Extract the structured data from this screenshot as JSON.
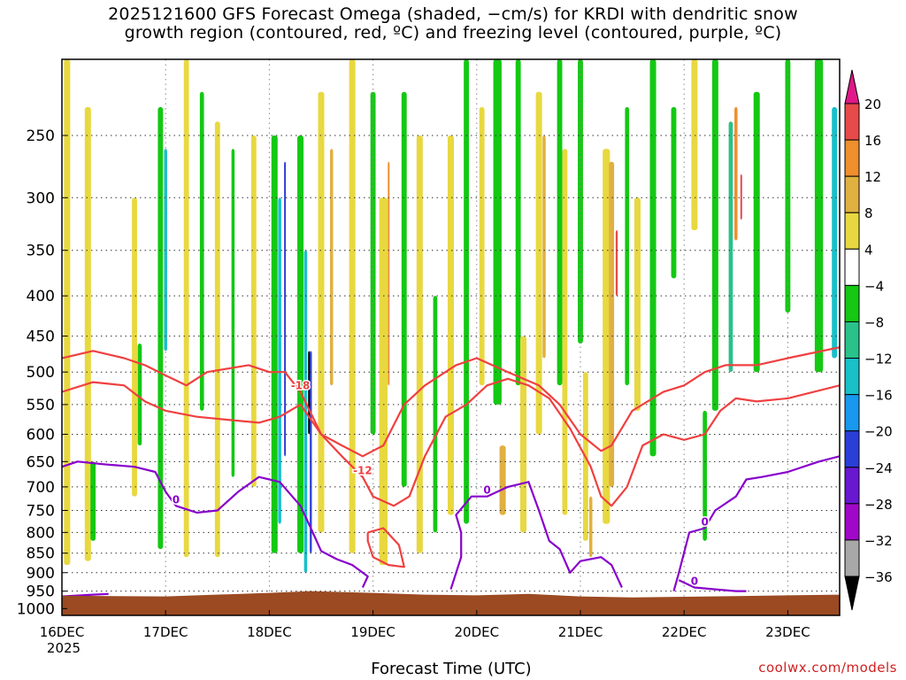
{
  "title_line1": "2025121600 GFS Forecast Omega (shaded, −cm/s) for KRDI with dendritic snow",
  "title_line2": "growth region (contoured, red, ºC) and freezing level (contoured, purple, ºC)",
  "credit": "coolwx.com/models",
  "colors": {
    "terrain": "#9b4a22",
    "dgz_contour": "#f04040",
    "freezing_contour": "#8800cc",
    "grid": "#333333"
  },
  "chart_data": {
    "type": "heatmap",
    "xlabel": "Forecast Time (UTC)",
    "ylabel": "",
    "x_ticks": [
      {
        "label": "16DEC",
        "sub": "2025"
      },
      {
        "label": "17DEC"
      },
      {
        "label": "18DEC"
      },
      {
        "label": "19DEC"
      },
      {
        "label": "20DEC"
      },
      {
        "label": "21DEC"
      },
      {
        "label": "22DEC"
      },
      {
        "label": "23DEC"
      }
    ],
    "xlim_days": [
      0,
      7.5
    ],
    "y_ticks": [
      250,
      300,
      350,
      400,
      450,
      500,
      550,
      600,
      650,
      700,
      750,
      800,
      850,
      900,
      950,
      1000
    ],
    "ylim_hpa": [
      200,
      1020
    ],
    "colorbar": {
      "labels": [
        "20",
        "16",
        "12",
        "8",
        "4",
        "−4",
        "−8",
        "−12",
        "−16",
        "−20",
        "−24",
        "−28",
        "−32",
        "−36"
      ],
      "bands": [
        {
          "from": 16,
          "to": 20,
          "color": "#e84a4a"
        },
        {
          "from": 12,
          "to": 16,
          "color": "#ef8f2e"
        },
        {
          "from": 8,
          "to": 12,
          "color": "#e0b040"
        },
        {
          "from": 4,
          "to": 8,
          "color": "#e8d840"
        },
        {
          "from": -4,
          "to": 4,
          "color": "#ffffff"
        },
        {
          "from": -8,
          "to": -4,
          "color": "#14c814"
        },
        {
          "from": -12,
          "to": -8,
          "color": "#28c28a"
        },
        {
          "from": -16,
          "to": -12,
          "color": "#18c0c8"
        },
        {
          "from": -20,
          "to": -16,
          "color": "#1898ee"
        },
        {
          "from": -24,
          "to": -20,
          "color": "#2c3ed8"
        },
        {
          "from": -28,
          "to": -24,
          "color": "#6818d0"
        },
        {
          "from": -32,
          "to": -28,
          "color": "#a008c8"
        },
        {
          "from": -36,
          "to": -32,
          "color": "#a8a8a8"
        }
      ],
      "top_cap": "#e01888",
      "bottom_cap": "#000000"
    },
    "shading": [
      {
        "d": 0.05,
        "p0": 200,
        "p1": 880,
        "v": 6,
        "w": 0.06
      },
      {
        "d": 0.25,
        "p0": 230,
        "p1": 870,
        "v": 6,
        "w": 0.06
      },
      {
        "d": 0.3,
        "p0": 650,
        "p1": 820,
        "v": -6,
        "w": 0.05
      },
      {
        "d": 0.7,
        "p0": 300,
        "p1": 720,
        "v": 6,
        "w": 0.05
      },
      {
        "d": 0.75,
        "p0": 460,
        "p1": 620,
        "v": -6,
        "w": 0.04
      },
      {
        "d": 0.95,
        "p0": 230,
        "p1": 840,
        "v": -6,
        "w": 0.05
      },
      {
        "d": 1.0,
        "p0": 260,
        "p1": 470,
        "v": -14,
        "w": 0.03
      },
      {
        "d": 1.2,
        "p0": 200,
        "p1": 860,
        "v": 6,
        "w": 0.05
      },
      {
        "d": 1.35,
        "p0": 220,
        "p1": 560,
        "v": -6,
        "w": 0.04
      },
      {
        "d": 1.5,
        "p0": 240,
        "p1": 860,
        "v": 6,
        "w": 0.05
      },
      {
        "d": 1.65,
        "p0": 260,
        "p1": 680,
        "v": -6,
        "w": 0.03
      },
      {
        "d": 1.85,
        "p0": 250,
        "p1": 700,
        "v": 6,
        "w": 0.05
      },
      {
        "d": 2.05,
        "p0": 250,
        "p1": 850,
        "v": -6,
        "w": 0.06
      },
      {
        "d": 2.1,
        "p0": 300,
        "p1": 780,
        "v": -14,
        "w": 0.03
      },
      {
        "d": 2.15,
        "p0": 270,
        "p1": 640,
        "v": -22,
        "w": 0.015
      },
      {
        "d": 2.3,
        "p0": 250,
        "p1": 850,
        "v": -6,
        "w": 0.06
      },
      {
        "d": 2.35,
        "p0": 350,
        "p1": 900,
        "v": -14,
        "w": 0.03
      },
      {
        "d": 2.4,
        "p0": 470,
        "p1": 850,
        "v": -22,
        "w": 0.02
      },
      {
        "d": 2.38,
        "p0": 470,
        "p1": 600,
        "v": -40,
        "w": 0.012
      },
      {
        "d": 2.5,
        "p0": 220,
        "p1": 800,
        "v": 6,
        "w": 0.06
      },
      {
        "d": 2.6,
        "p0": 260,
        "p1": 520,
        "v": 10,
        "w": 0.03
      },
      {
        "d": 2.8,
        "p0": 200,
        "p1": 850,
        "v": 6,
        "w": 0.06
      },
      {
        "d": 3.0,
        "p0": 220,
        "p1": 600,
        "v": -6,
        "w": 0.05
      },
      {
        "d": 3.1,
        "p0": 300,
        "p1": 880,
        "v": 6,
        "w": 0.08
      },
      {
        "d": 3.15,
        "p0": 270,
        "p1": 520,
        "v": 14,
        "w": 0.015
      },
      {
        "d": 3.3,
        "p0": 220,
        "p1": 700,
        "v": -6,
        "w": 0.05
      },
      {
        "d": 3.45,
        "p0": 250,
        "p1": 850,
        "v": 6,
        "w": 0.06
      },
      {
        "d": 3.6,
        "p0": 400,
        "p1": 800,
        "v": -6,
        "w": 0.04
      },
      {
        "d": 3.75,
        "p0": 250,
        "p1": 760,
        "v": 6,
        "w": 0.06
      },
      {
        "d": 3.9,
        "p0": 200,
        "p1": 780,
        "v": -6,
        "w": 0.05
      },
      {
        "d": 4.05,
        "p0": 230,
        "p1": 520,
        "v": 6,
        "w": 0.05
      },
      {
        "d": 4.2,
        "p0": 200,
        "p1": 550,
        "v": -6,
        "w": 0.08
      },
      {
        "d": 4.25,
        "p0": 620,
        "p1": 760,
        "v": 10,
        "w": 0.06
      },
      {
        "d": 4.4,
        "p0": 200,
        "p1": 520,
        "v": -6,
        "w": 0.05
      },
      {
        "d": 4.45,
        "p0": 450,
        "p1": 800,
        "v": 6,
        "w": 0.06
      },
      {
        "d": 4.6,
        "p0": 220,
        "p1": 600,
        "v": 6,
        "w": 0.06
      },
      {
        "d": 4.65,
        "p0": 250,
        "p1": 480,
        "v": 10,
        "w": 0.03
      },
      {
        "d": 4.8,
        "p0": 200,
        "p1": 520,
        "v": -6,
        "w": 0.05
      },
      {
        "d": 4.85,
        "p0": 260,
        "p1": 760,
        "v": 6,
        "w": 0.05
      },
      {
        "d": 5.0,
        "p0": 200,
        "p1": 460,
        "v": -6,
        "w": 0.05
      },
      {
        "d": 5.05,
        "p0": 500,
        "p1": 820,
        "v": 6,
        "w": 0.05
      },
      {
        "d": 5.1,
        "p0": 720,
        "p1": 860,
        "v": 10,
        "w": 0.03
      },
      {
        "d": 5.25,
        "p0": 260,
        "p1": 780,
        "v": 6,
        "w": 0.07
      },
      {
        "d": 5.3,
        "p0": 270,
        "p1": 700,
        "v": 10,
        "w": 0.05
      },
      {
        "d": 5.35,
        "p0": 330,
        "p1": 400,
        "v": 18,
        "w": 0.02
      },
      {
        "d": 5.45,
        "p0": 230,
        "p1": 520,
        "v": -6,
        "w": 0.04
      },
      {
        "d": 5.55,
        "p0": 300,
        "p1": 560,
        "v": 6,
        "w": 0.06
      },
      {
        "d": 5.7,
        "p0": 200,
        "p1": 640,
        "v": -6,
        "w": 0.06
      },
      {
        "d": 5.9,
        "p0": 230,
        "p1": 380,
        "v": -6,
        "w": 0.05
      },
      {
        "d": 6.1,
        "p0": 200,
        "p1": 330,
        "v": 6,
        "w": 0.06
      },
      {
        "d": 6.3,
        "p0": 200,
        "p1": 560,
        "v": -6,
        "w": 0.06
      },
      {
        "d": 6.2,
        "p0": 560,
        "p1": 820,
        "v": -6,
        "w": 0.04
      },
      {
        "d": 6.5,
        "p0": 230,
        "p1": 340,
        "v": 14,
        "w": 0.03
      },
      {
        "d": 6.55,
        "p0": 280,
        "p1": 320,
        "v": 18,
        "w": 0.015
      },
      {
        "d": 6.45,
        "p0": 240,
        "p1": 500,
        "v": -10,
        "w": 0.04
      },
      {
        "d": 6.7,
        "p0": 220,
        "p1": 500,
        "v": -6,
        "w": 0.06
      },
      {
        "d": 7.0,
        "p0": 200,
        "p1": 420,
        "v": -6,
        "w": 0.05
      },
      {
        "d": 7.3,
        "p0": 200,
        "p1": 500,
        "v": -6,
        "w": 0.08
      },
      {
        "d": 7.45,
        "p0": 230,
        "p1": 480,
        "v": -14,
        "w": 0.05
      }
    ],
    "dgz_contours": [
      {
        "label": "-12",
        "points": [
          [
            0,
            530
          ],
          [
            0.3,
            515
          ],
          [
            0.6,
            520
          ],
          [
            0.8,
            545
          ],
          [
            1.0,
            560
          ],
          [
            1.3,
            570
          ],
          [
            1.6,
            575
          ],
          [
            1.9,
            580
          ],
          [
            2.1,
            570
          ],
          [
            2.3,
            550
          ],
          [
            2.5,
            600
          ],
          [
            2.7,
            640
          ],
          [
            2.9,
            680
          ],
          [
            3.0,
            720
          ],
          [
            3.2,
            740
          ],
          [
            3.35,
            720
          ],
          [
            3.5,
            640
          ],
          [
            3.7,
            570
          ],
          [
            3.9,
            550
          ],
          [
            4.1,
            520
          ],
          [
            4.3,
            510
          ],
          [
            4.5,
            520
          ],
          [
            4.7,
            540
          ],
          [
            4.9,
            590
          ],
          [
            5.1,
            660
          ],
          [
            5.2,
            720
          ],
          [
            5.3,
            740
          ],
          [
            5.45,
            700
          ],
          [
            5.6,
            620
          ],
          [
            5.8,
            600
          ],
          [
            6.0,
            610
          ],
          [
            6.2,
            600
          ],
          [
            6.35,
            560
          ],
          [
            6.5,
            540
          ],
          [
            6.7,
            545
          ],
          [
            7.0,
            540
          ],
          [
            7.5,
            520
          ]
        ]
      },
      {
        "label": "-18",
        "points": [
          [
            0,
            480
          ],
          [
            0.3,
            470
          ],
          [
            0.6,
            480
          ],
          [
            0.8,
            490
          ],
          [
            1.0,
            505
          ],
          [
            1.2,
            520
          ],
          [
            1.4,
            500
          ],
          [
            1.6,
            495
          ],
          [
            1.8,
            490
          ],
          [
            2.0,
            500
          ],
          [
            2.15,
            500
          ],
          [
            2.3,
            530
          ],
          [
            2.5,
            600
          ],
          [
            2.7,
            620
          ],
          [
            2.9,
            640
          ],
          [
            3.1,
            620
          ],
          [
            3.3,
            550
          ],
          [
            3.5,
            520
          ],
          [
            3.8,
            490
          ],
          [
            4.0,
            480
          ],
          [
            4.3,
            500
          ],
          [
            4.6,
            520
          ],
          [
            4.8,
            550
          ],
          [
            5.0,
            600
          ],
          [
            5.2,
            630
          ],
          [
            5.3,
            620
          ],
          [
            5.5,
            560
          ],
          [
            5.8,
            530
          ],
          [
            6.0,
            520
          ],
          [
            6.2,
            500
          ],
          [
            6.4,
            490
          ],
          [
            6.7,
            490
          ],
          [
            7.0,
            480
          ],
          [
            7.5,
            465
          ]
        ]
      },
      {
        "label": "",
        "points": [
          [
            2.95,
            800
          ],
          [
            3.1,
            790
          ],
          [
            3.25,
            830
          ],
          [
            3.3,
            885
          ],
          [
            3.15,
            880
          ],
          [
            3.0,
            860
          ],
          [
            2.95,
            820
          ],
          [
            2.95,
            800
          ]
        ]
      }
    ],
    "freezing_contours": [
      {
        "label": "0",
        "points": [
          [
            0,
            660
          ],
          [
            0.15,
            650
          ],
          [
            0.4,
            655
          ],
          [
            0.7,
            660
          ],
          [
            0.9,
            670
          ],
          [
            1.0,
            710
          ],
          [
            1.1,
            740
          ],
          [
            1.3,
            755
          ],
          [
            1.5,
            750
          ],
          [
            1.7,
            710
          ],
          [
            1.9,
            680
          ],
          [
            2.1,
            690
          ],
          [
            2.3,
            740
          ],
          [
            2.4,
            790
          ],
          [
            2.5,
            845
          ],
          [
            2.65,
            865
          ],
          [
            2.8,
            880
          ],
          [
            2.95,
            910
          ],
          [
            2.9,
            940
          ]
        ]
      },
      {
        "label": "0",
        "points": [
          [
            3.75,
            945
          ],
          [
            3.85,
            860
          ],
          [
            3.85,
            800
          ],
          [
            3.8,
            760
          ],
          [
            3.95,
            720
          ],
          [
            4.1,
            720
          ],
          [
            4.3,
            700
          ],
          [
            4.5,
            690
          ],
          [
            4.6,
            750
          ],
          [
            4.7,
            820
          ],
          [
            4.8,
            840
          ],
          [
            4.9,
            900
          ],
          [
            5.0,
            870
          ],
          [
            5.2,
            860
          ],
          [
            5.3,
            880
          ],
          [
            5.4,
            940
          ]
        ]
      },
      {
        "label": "0",
        "points": [
          [
            5.9,
            950
          ],
          [
            5.95,
            900
          ],
          [
            6.05,
            800
          ],
          [
            6.2,
            790
          ],
          [
            6.3,
            750
          ],
          [
            6.5,
            720
          ],
          [
            6.6,
            685
          ],
          [
            6.75,
            680
          ],
          [
            7.0,
            670
          ],
          [
            7.3,
            650
          ],
          [
            7.5,
            640
          ]
        ]
      },
      {
        "label": "0",
        "points": [
          [
            5.95,
            920
          ],
          [
            6.1,
            940
          ],
          [
            6.3,
            945
          ],
          [
            6.5,
            950
          ],
          [
            6.6,
            950
          ]
        ]
      },
      {
        "label": "",
        "points": [
          [
            0,
            965
          ],
          [
            0.3,
            960
          ],
          [
            0.45,
            958
          ]
        ]
      }
    ],
    "surface_pressure": [
      [
        0,
        963
      ],
      [
        1.0,
        965
      ],
      [
        2.0,
        955
      ],
      [
        2.4,
        950
      ],
      [
        3.0,
        955
      ],
      [
        3.5,
        960
      ],
      [
        4.0,
        962
      ],
      [
        4.5,
        958
      ],
      [
        5.0,
        965
      ],
      [
        5.5,
        968
      ],
      [
        6.0,
        966
      ],
      [
        6.5,
        964
      ],
      [
        7.0,
        962
      ],
      [
        7.5,
        960
      ]
    ]
  }
}
